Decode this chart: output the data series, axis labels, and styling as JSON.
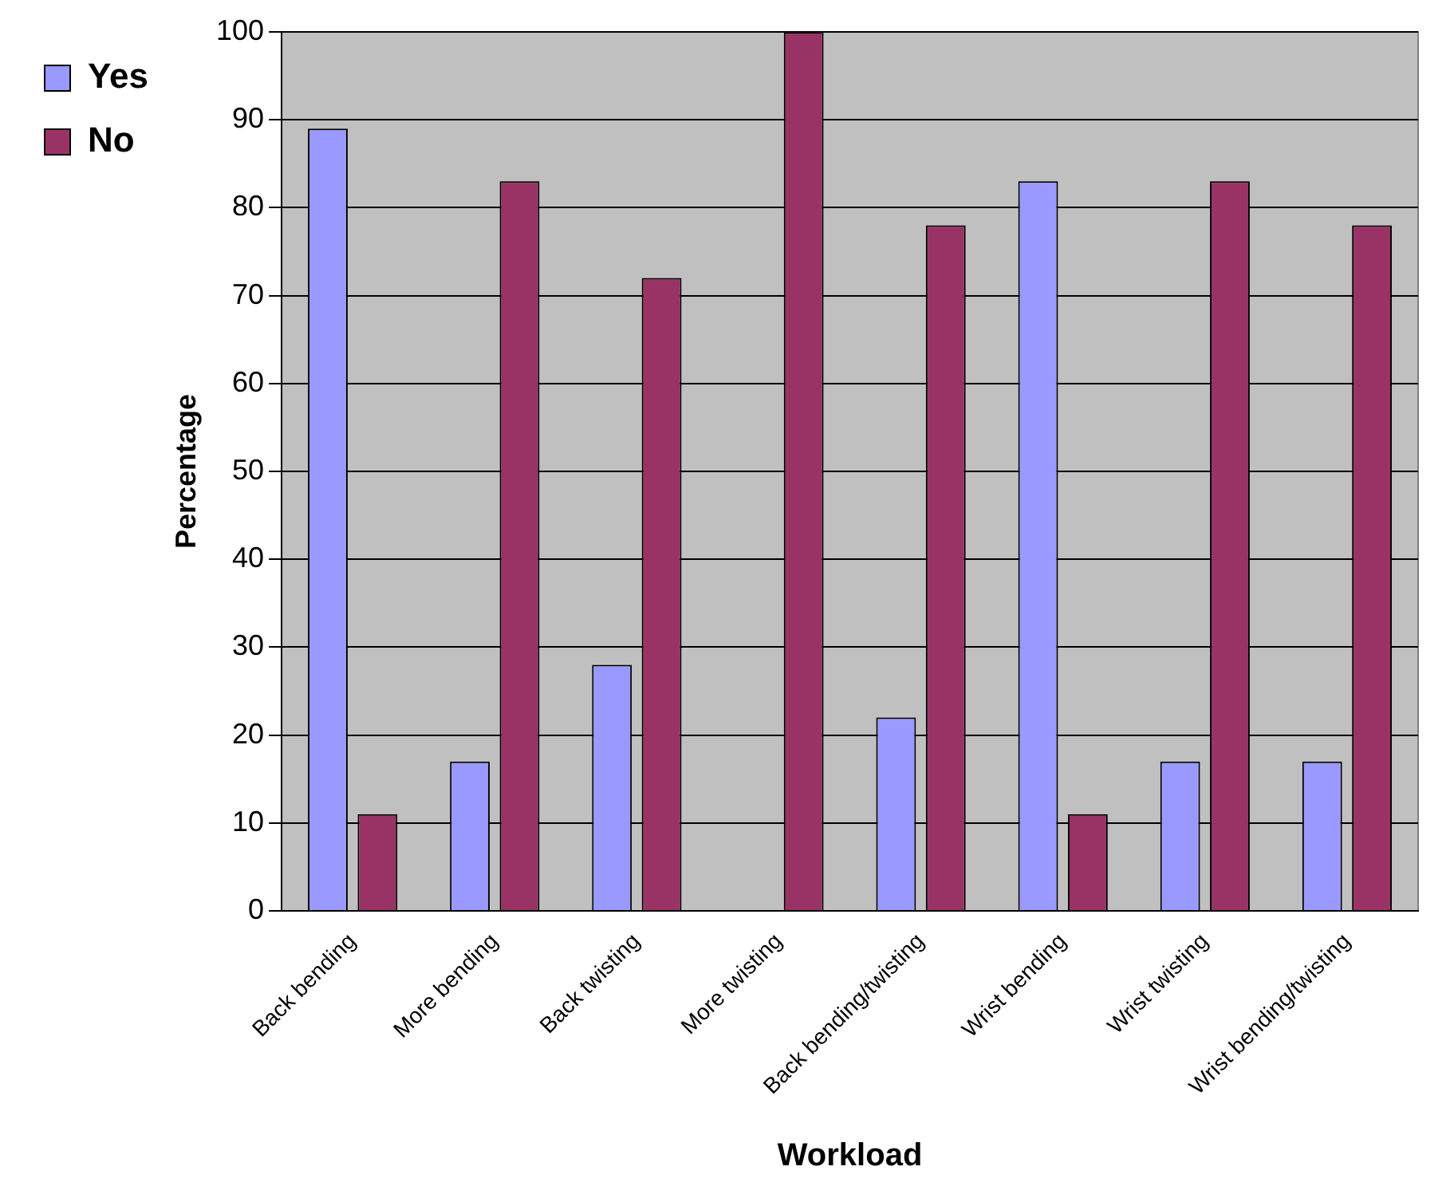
{
  "chart_data": {
    "type": "bar",
    "xlabel": "Workload",
    "ylabel": "Percentage",
    "categories": [
      "Back bending",
      "More bending",
      "Back twisting",
      "More twisting",
      "Back bending/twisting",
      "Wrist bending",
      "Wrist twisting",
      "Wrist bending/twisting"
    ],
    "series": [
      {
        "name": "Yes",
        "color": "#9999ff",
        "values": [
          89,
          17,
          28,
          0,
          22,
          83,
          17,
          17
        ]
      },
      {
        "name": "No",
        "color": "#993366",
        "values": [
          11,
          83,
          72,
          100,
          78,
          11,
          83,
          78
        ]
      }
    ],
    "ylim": [
      0,
      100
    ],
    "yticks": [
      0,
      10,
      20,
      30,
      40,
      50,
      60,
      70,
      80,
      90,
      100
    ],
    "grid": "y",
    "legend": "top left"
  }
}
